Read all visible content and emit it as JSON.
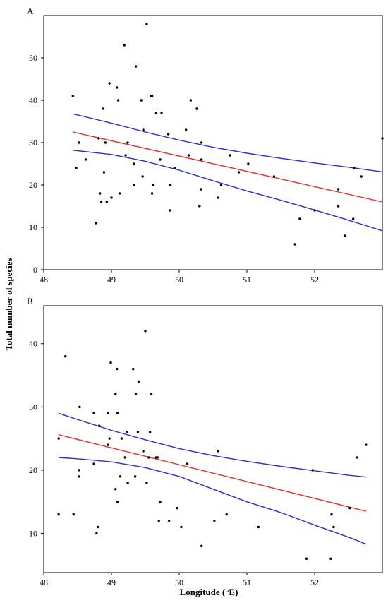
{
  "figure": {
    "ylabel": "Total number of species",
    "xlabel": "Longitude (°E)"
  },
  "chart_data": [
    {
      "type": "scatter",
      "panel_label": "A",
      "xlim": [
        48,
        53
      ],
      "ylim": [
        0,
        60
      ],
      "x_ticks": [
        48,
        49,
        50,
        51,
        52
      ],
      "y_ticks": [
        0,
        10,
        20,
        30,
        40,
        50
      ],
      "grid": false,
      "points": [
        [
          48.43,
          41
        ],
        [
          48.48,
          24
        ],
        [
          48.52,
          30
        ],
        [
          48.62,
          26
        ],
        [
          48.77,
          11
        ],
        [
          48.81,
          31
        ],
        [
          48.83,
          18
        ],
        [
          48.85,
          16
        ],
        [
          48.88,
          38
        ],
        [
          48.89,
          23
        ],
        [
          48.91,
          30
        ],
        [
          48.93,
          16
        ],
        [
          48.97,
          44
        ],
        [
          49.0,
          17
        ],
        [
          49.08,
          43
        ],
        [
          49.1,
          40
        ],
        [
          49.12,
          18
        ],
        [
          49.19,
          53
        ],
        [
          49.21,
          27
        ],
        [
          49.24,
          30
        ],
        [
          49.33,
          25
        ],
        [
          49.33,
          20
        ],
        [
          49.36,
          48
        ],
        [
          49.44,
          40
        ],
        [
          49.46,
          22
        ],
        [
          49.47,
          33
        ],
        [
          49.52,
          58
        ],
        [
          49.58,
          41
        ],
        [
          49.6,
          41
        ],
        [
          49.6,
          18
        ],
        [
          49.62,
          20
        ],
        [
          49.66,
          37
        ],
        [
          49.72,
          26
        ],
        [
          49.74,
          37
        ],
        [
          49.84,
          32
        ],
        [
          49.86,
          14
        ],
        [
          49.87,
          20
        ],
        [
          49.93,
          24
        ],
        [
          50.1,
          33
        ],
        [
          50.14,
          27
        ],
        [
          50.17,
          40
        ],
        [
          50.26,
          38
        ],
        [
          50.3,
          15
        ],
        [
          50.32,
          19
        ],
        [
          50.33,
          26
        ],
        [
          50.33,
          30
        ],
        [
          50.57,
          17
        ],
        [
          50.62,
          20
        ],
        [
          50.75,
          27
        ],
        [
          50.88,
          23
        ],
        [
          51.02,
          25
        ],
        [
          51.4,
          22
        ],
        [
          51.71,
          6
        ],
        [
          51.78,
          12
        ],
        [
          52.0,
          14
        ],
        [
          52.35,
          15
        ],
        [
          52.35,
          19
        ],
        [
          52.45,
          8
        ],
        [
          52.57,
          12
        ],
        [
          52.58,
          24
        ],
        [
          52.69,
          22
        ],
        [
          53.0,
          31
        ]
      ],
      "fit": {
        "x": [
          48.43,
          53.0
        ],
        "y": [
          32.5,
          16.0
        ]
      },
      "ci_upper": {
        "x": [
          48.43,
          49.0,
          49.5,
          50.0,
          50.5,
          51.0,
          51.5,
          52.0,
          52.5,
          53.0
        ],
        "y": [
          36.8,
          34.6,
          32.5,
          30.6,
          28.9,
          27.5,
          26.3,
          25.2,
          24.2,
          23.1
        ]
      },
      "ci_lower": {
        "x": [
          48.43,
          49.0,
          49.5,
          50.0,
          50.5,
          51.0,
          51.5,
          52.0,
          52.5,
          53.0
        ],
        "y": [
          28.2,
          27.2,
          25.6,
          23.5,
          21.0,
          18.6,
          16.4,
          14.1,
          11.7,
          9.2
        ]
      }
    },
    {
      "type": "scatter",
      "panel_label": "B",
      "xlim": [
        48,
        53
      ],
      "ylim": [
        3.8,
        46
      ],
      "x_ticks": [
        48,
        49,
        50,
        51,
        52
      ],
      "y_ticks": [
        10,
        20,
        30,
        40
      ],
      "grid": false,
      "points": [
        [
          48.22,
          13
        ],
        [
          48.22,
          25
        ],
        [
          48.32,
          38
        ],
        [
          48.44,
          13
        ],
        [
          48.52,
          19
        ],
        [
          48.52,
          20
        ],
        [
          48.53,
          30
        ],
        [
          48.74,
          29
        ],
        [
          48.74,
          21
        ],
        [
          48.78,
          10
        ],
        [
          48.8,
          11
        ],
        [
          48.82,
          27
        ],
        [
          48.95,
          24
        ],
        [
          48.95,
          29
        ],
        [
          48.97,
          25
        ],
        [
          48.99,
          37
        ],
        [
          49.06,
          17
        ],
        [
          49.06,
          32
        ],
        [
          49.08,
          36
        ],
        [
          49.09,
          15
        ],
        [
          49.09,
          29
        ],
        [
          49.13,
          19
        ],
        [
          49.15,
          25
        ],
        [
          49.2,
          22
        ],
        [
          49.23,
          26
        ],
        [
          49.24,
          18
        ],
        [
          49.32,
          36
        ],
        [
          49.35,
          19
        ],
        [
          49.36,
          32
        ],
        [
          49.39,
          26
        ],
        [
          49.4,
          34
        ],
        [
          49.47,
          23
        ],
        [
          49.5,
          42
        ],
        [
          49.52,
          18
        ],
        [
          49.55,
          22
        ],
        [
          49.57,
          26
        ],
        [
          49.59,
          32
        ],
        [
          49.66,
          22
        ],
        [
          49.68,
          22
        ],
        [
          49.7,
          12
        ],
        [
          49.72,
          15
        ],
        [
          49.85,
          12
        ],
        [
          49.97,
          14
        ],
        [
          50.03,
          11
        ],
        [
          50.12,
          21
        ],
        [
          50.33,
          8
        ],
        [
          50.52,
          12
        ],
        [
          50.57,
          23
        ],
        [
          50.7,
          13
        ],
        [
          51.17,
          11
        ],
        [
          51.88,
          6
        ],
        [
          51.97,
          20
        ],
        [
          52.24,
          6
        ],
        [
          52.25,
          13
        ],
        [
          52.28,
          11
        ],
        [
          52.52,
          14
        ],
        [
          52.62,
          22
        ],
        [
          52.76,
          24
        ]
      ],
      "fit": {
        "x": [
          48.22,
          52.76
        ],
        "y": [
          25.6,
          13.5
        ]
      },
      "ci_upper": {
        "x": [
          48.22,
          48.5,
          49.0,
          49.5,
          50.0,
          50.5,
          51.0,
          51.5,
          52.0,
          52.5,
          52.76
        ],
        "y": [
          29.0,
          28.0,
          26.3,
          24.8,
          23.4,
          22.3,
          21.4,
          20.6,
          19.9,
          19.2,
          18.9
        ]
      },
      "ci_lower": {
        "x": [
          48.22,
          48.5,
          49.0,
          49.5,
          50.0,
          50.5,
          51.0,
          51.5,
          52.0,
          52.5,
          52.76
        ],
        "y": [
          22.0,
          21.8,
          21.3,
          20.4,
          19.0,
          17.0,
          15.0,
          13.3,
          11.3,
          9.4,
          8.3
        ]
      }
    }
  ]
}
